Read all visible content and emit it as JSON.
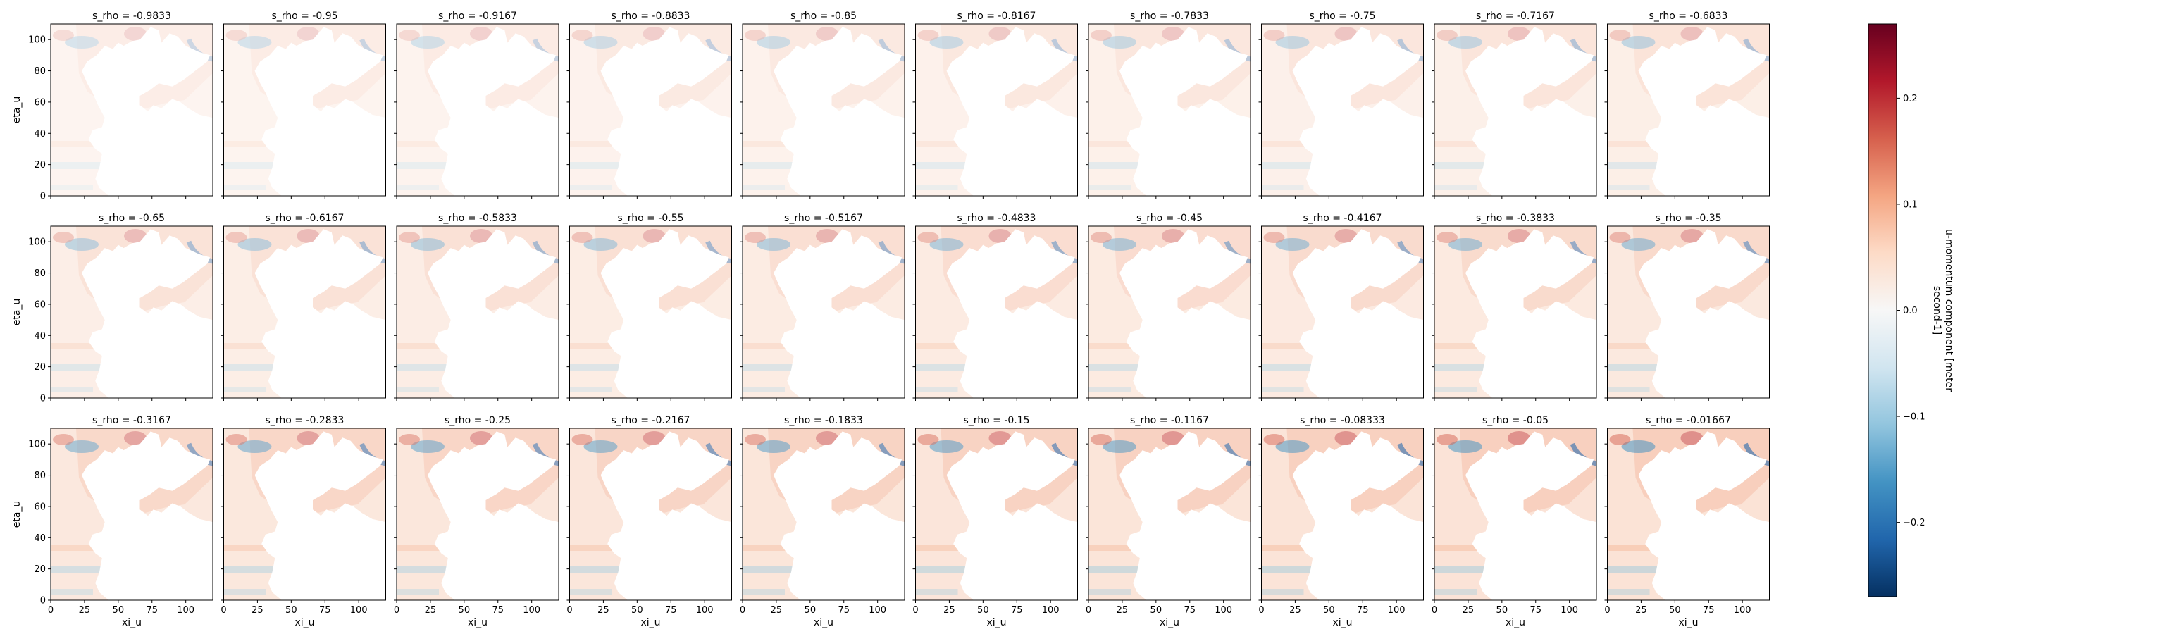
{
  "chart_data": {
    "type": "heatmap",
    "layout": {
      "rows": 3,
      "cols": 10
    },
    "panel_titles": [
      "s_rho = -0.9833",
      "s_rho = -0.95",
      "s_rho = -0.9167",
      "s_rho = -0.8833",
      "s_rho = -0.85",
      "s_rho = -0.8167",
      "s_rho = -0.7833",
      "s_rho = -0.75",
      "s_rho = -0.7167",
      "s_rho = -0.6833",
      "s_rho = -0.65",
      "s_rho = -0.6167",
      "s_rho = -0.5833",
      "s_rho = -0.55",
      "s_rho = -0.5167",
      "s_rho = -0.4833",
      "s_rho = -0.45",
      "s_rho = -0.4167",
      "s_rho = -0.3833",
      "s_rho = -0.35",
      "s_rho = -0.3167",
      "s_rho = -0.2833",
      "s_rho = -0.25",
      "s_rho = -0.2167",
      "s_rho = -0.1833",
      "s_rho = -0.15",
      "s_rho = -0.1167",
      "s_rho = -0.08333",
      "s_rho = -0.05",
      "s_rho = -0.01667"
    ],
    "s_rho": [
      -0.9833,
      -0.95,
      -0.9167,
      -0.8833,
      -0.85,
      -0.8167,
      -0.7833,
      -0.75,
      -0.7167,
      -0.6833,
      -0.65,
      -0.6167,
      -0.5833,
      -0.55,
      -0.5167,
      -0.4833,
      -0.45,
      -0.4167,
      -0.3833,
      -0.35,
      -0.3167,
      -0.2833,
      -0.25,
      -0.2167,
      -0.1833,
      -0.15,
      -0.1167,
      -0.08333,
      -0.05,
      -0.01667
    ],
    "xlabel": "xi_u",
    "ylabel": "eta_u",
    "xlim": [
      0,
      120
    ],
    "ylim": [
      0,
      110
    ],
    "xticks": [
      0,
      25,
      50,
      75,
      100
    ],
    "yticks": [
      0,
      20,
      40,
      60,
      80,
      100
    ],
    "colorbar": {
      "label_lines": [
        "u-momentum component [meter",
        "second-1]"
      ],
      "vmin": -0.27,
      "vmax": 0.27,
      "ticks": [
        -0.2,
        -0.1,
        0.0,
        0.1,
        0.2
      ],
      "tick_labels": [
        "−0.2",
        "−0.1",
        "0.0",
        "0.1",
        "0.2"
      ],
      "colormap": "RdBu_r",
      "stops": [
        "#053061",
        "#2166ac",
        "#4393c3",
        "#92c5de",
        "#d1e5f0",
        "#f7f7f7",
        "#fddbc7",
        "#f4a582",
        "#d6604d",
        "#b2182b",
        "#67001f"
      ]
    },
    "land_color": "#ffffff",
    "axis_color": "#000000"
  }
}
